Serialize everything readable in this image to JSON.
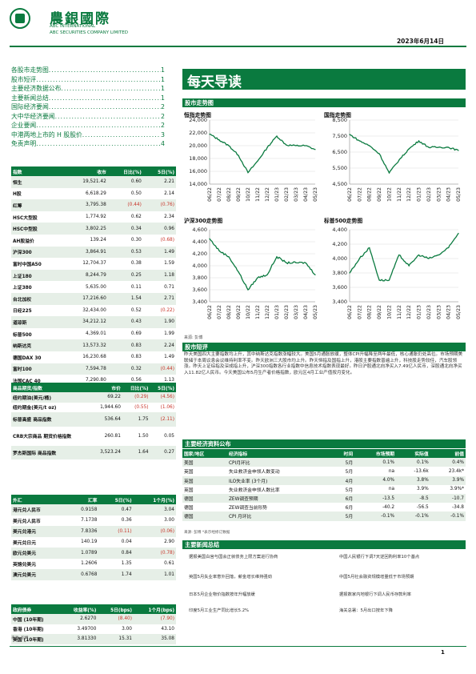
{
  "header": {
    "logo_cn": "農銀國際",
    "logo_en1": "ABC INTERNATIONAL",
    "logo_en2": "ABC SECURITIES COMPANY LIMITED",
    "date": "2023年6月14日"
  },
  "toc": [
    {
      "title": "各股市走势图",
      "page": "1"
    },
    {
      "title": "股市短评",
      "page": "1"
    },
    {
      "title": "主要经济数据公布",
      "page": "1"
    },
    {
      "title": "主要新闻总结",
      "page": "1"
    },
    {
      "title": "国际经济要闻",
      "page": "2"
    },
    {
      "title": "大中华经济要闻",
      "page": "2"
    },
    {
      "title": "企业要闻",
      "page": "2"
    },
    {
      "title": "中港两地上市的 H 股股价",
      "page": "3"
    },
    {
      "title": "免责声明",
      "page": "4"
    }
  ],
  "index_table": {
    "headers": [
      "指数",
      "收市",
      "日比(%)",
      "5日(%)"
    ],
    "rows": [
      [
        "恒生",
        "19,521.42",
        "0.60",
        "2.21"
      ],
      [
        "H股",
        "6,618.29",
        "0.50",
        "2.14"
      ],
      [
        "红筹",
        "3,795.38",
        "(0.44)",
        "(0.76)"
      ],
      [
        "HSC大型股",
        "1,774.92",
        "0.62",
        "2.34"
      ],
      [
        "HSC中型股",
        "3,802.25",
        "0.34",
        "0.96"
      ],
      [
        "AH股溢价",
        "139.24",
        "0.30",
        "(0.68)"
      ],
      [
        "沪深300",
        "3,864.91",
        "0.53",
        "1.49"
      ],
      [
        "富时中国A50",
        "12,704.37",
        "0.38",
        "1.59"
      ],
      [
        "上证180",
        "8,244.79",
        "0.25",
        "1.18"
      ],
      [
        "上证380",
        "5,635.00",
        "0.11",
        "0.71"
      ],
      [
        "台北加权",
        "17,216.60",
        "1.54",
        "2.71"
      ],
      [
        "日经225",
        "32,434.00",
        "0.52",
        "(0.22)"
      ],
      [
        "道琼斯",
        "34,212.12",
        "0.43",
        "1.90"
      ],
      [
        "标普500",
        "4,369.01",
        "0.69",
        "1.99"
      ],
      [
        "纳斯达克",
        "13,573.32",
        "0.83",
        "2.24"
      ],
      [
        "德国DAX 30",
        "16,230.68",
        "0.83",
        "1.49"
      ],
      [
        "富时100",
        "7,594.78",
        "0.32",
        "(0.44)"
      ],
      [
        "法国CAC 40",
        "7,290.80",
        "0.56",
        "1.13"
      ]
    ]
  },
  "commodity_table": {
    "headers": [
      "商品期货/指数",
      "市价",
      "日比(%)",
      "5日(%)"
    ],
    "rows": [
      [
        "纽约期油(美元/桶)",
        "69.22",
        "(0.29)",
        "(4.56)"
      ],
      [
        "纽约期金(美元/t oz)",
        "1,944.60",
        "(0.55)",
        "(1.06)"
      ],
      [
        "标普高盛 商品指数",
        "536.64",
        "1.75",
        "(2.11)"
      ],
      [
        "CRB大宗商品 期货价格指数",
        "260.81",
        "1.50",
        "0.05"
      ],
      [
        "罗杰斯国际 商品指数",
        "3,523.24",
        "1.64",
        "0.27"
      ]
    ]
  },
  "fx_table": {
    "headers": [
      "外汇",
      "汇率",
      "5日(%)",
      "1个月(%)"
    ],
    "rows": [
      [
        "港元兑人民币",
        "0.9158",
        "0.47",
        "3.04"
      ],
      [
        "美元兑人民币",
        "7.1738",
        "0.36",
        "3.00"
      ],
      [
        "美元兑港元",
        "7.8336",
        "(0.11)",
        "(0.06)"
      ],
      [
        "美元兑日元",
        "140.19",
        "0.04",
        "2.90"
      ],
      [
        "欧元兑美元",
        "1.0789",
        "0.84",
        "(0.78)"
      ],
      [
        "英镑兑美元",
        "1.2606",
        "1.35",
        "0.61"
      ],
      [
        "澳元兑美元",
        "0.6768",
        "1.74",
        "1.01"
      ]
    ]
  },
  "bond_table": {
    "headers": [
      "政府债券",
      "收益率(%)",
      "5日(bps)",
      "1个月(bps)"
    ],
    "rows": [
      [
        "中国 (10年期)",
        "2.6270",
        "(8.40)",
        "(7.90)"
      ],
      [
        "香港 (10年期)",
        "3.49700",
        "3.00",
        "43.10"
      ],
      [
        "美国 (10年期)",
        "3.81330",
        "15.31",
        "35.08"
      ]
    ],
    "source": "来源: 彭博"
  },
  "main": {
    "title": "每天导读",
    "chart_section": "股市走势图",
    "source": "来源: 彭博",
    "commentary_section": "股市短评",
    "commentary": "昨天美国四大主要指数均上升，其中纳斯达克指数涨幅较大。美国5月通胀放缓，整体CPI升幅降至两年最低，核心通胀仍处高位。市场预期美联储于本周议息会议维持利率不变。昨天欧洲三大股市均上升。昨天恒指及国指上升，港股主要指数普遍上升，科技股走势较佳，汽车股领涨。昨天上证综指及深成指上升，沪深300指数各行业指数中信息技术指数表现最好。昨日沪股通北向净买入7.49亿人民币，深股通北向净买入11.82亿人民币。今天美国公布5月生产者价格指数，欧元区4月工业产值按月变化。",
    "econ_section": "主要经济资料公布",
    "news_section": "主要新闻总结",
    "news": [
      "据报美国白宫与国会正就债务上限方案进行协商",
      "英国5月失业率意外回落，薪金增长维持强劲",
      "日本5月企业物价指数按年升幅放缓",
      "印度5月工业生产同比增长5.2%",
      "中国人民银行下调7天逆回购利率10个基点",
      "中国5月社会融资规模增量低于市场预期",
      "据报数家内地银行下调人民币存款利率",
      "海关总署：5月出口按年下降"
    ]
  },
  "econ_table": {
    "headers": [
      "国家/地区",
      "经济指标",
      "时间",
      "市场预期",
      "实际值",
      "前值"
    ],
    "rows": [
      [
        "美国",
        "CPI月环比",
        "5月",
        "0.1%",
        "0.1%",
        "0.4%"
      ],
      [
        "英国",
        "失业救济金申领人数变动",
        "5月",
        "na",
        "-13.6k",
        "23.4k*"
      ],
      [
        "英国",
        "ILO失业率 (3个月)",
        "4月",
        "4.0%",
        "3.8%",
        "3.9%"
      ],
      [
        "英国",
        "失业救济金申领人数比率",
        "5月",
        "na",
        "3.9%",
        "3.9%*"
      ],
      [
        "德国",
        "ZEW调查预期",
        "6月",
        "-13.5",
        "-8.5",
        "-10.7"
      ],
      [
        "德国",
        "ZEW调查当前形势",
        "6月",
        "-40.2",
        "-56.5",
        "-34.8"
      ],
      [
        "德国",
        "CPI 月环比",
        "5月",
        "-0.1%",
        "-0.1%",
        "-0.1%"
      ]
    ],
    "source": "来源: 彭博 *表示经修订数据"
  },
  "page_number": "1",
  "colors": {
    "brand": "#0a7a3f",
    "negative": "#c8352a",
    "shade": "#e6efe7"
  },
  "chart_data": [
    {
      "type": "line",
      "title": "恒指走势图",
      "categories": [
        "06/22",
        "07/22",
        "08/22",
        "09/22",
        "10/22",
        "11/22",
        "12/22",
        "01/23",
        "02/23",
        "03/23",
        "04/23",
        "05/23"
      ],
      "values": [
        21800,
        20900,
        20000,
        18500,
        15800,
        17600,
        19700,
        21500,
        20100,
        20000,
        20000,
        19400
      ],
      "ylim": [
        14000,
        24000
      ],
      "yticks": [
        "14,000",
        "16,000",
        "18,000",
        "20,000",
        "22,000",
        "24,000"
      ],
      "color": "#0a7a3f"
    },
    {
      "type": "line",
      "title": "国指走势图",
      "categories": [
        "06/22",
        "07/22",
        "08/22",
        "09/22",
        "10/22",
        "11/22",
        "12/22",
        "01/23",
        "02/23",
        "03/23",
        "04/23",
        "05/23"
      ],
      "values": [
        7600,
        7200,
        6900,
        6400,
        5200,
        6000,
        6700,
        7200,
        6800,
        6800,
        6800,
        6600
      ],
      "ylim": [
        4500,
        8500
      ],
      "yticks": [
        "4,500",
        "5,500",
        "6,500",
        "7,500",
        "8,500"
      ],
      "color": "#0a7a3f"
    },
    {
      "type": "line",
      "title": "沪深300走势图",
      "categories": [
        "06/22",
        "07/22",
        "08/22",
        "09/22",
        "10/22",
        "11/22",
        "12/22",
        "01/23",
        "02/23",
        "03/23",
        "04/23",
        "05/23"
      ],
      "values": [
        4450,
        4250,
        4150,
        3900,
        3600,
        3800,
        3850,
        4150,
        4050,
        4050,
        4050,
        3850
      ],
      "ylim": [
        3400,
        4600
      ],
      "yticks": [
        "3,400",
        "3,600",
        "3,800",
        "4,000",
        "4,200",
        "4,400",
        "4,600"
      ],
      "color": "#0a7a3f"
    },
    {
      "type": "line",
      "title": "标普500走势图",
      "categories": [
        "06/22",
        "07/22",
        "08/22",
        "09/22",
        "10/22",
        "11/22",
        "12/22",
        "01/23",
        "02/23",
        "03/23",
        "04/23",
        "05/23"
      ],
      "values": [
        3800,
        4000,
        4150,
        3700,
        3700,
        4050,
        3900,
        4050,
        4000,
        4050,
        4150,
        4350
      ],
      "ylim": [
        3400,
        4400
      ],
      "yticks": [
        "3,400",
        "3,600",
        "3,800",
        "4,000",
        "4,200",
        "4,400"
      ],
      "color": "#0a7a3f"
    }
  ]
}
